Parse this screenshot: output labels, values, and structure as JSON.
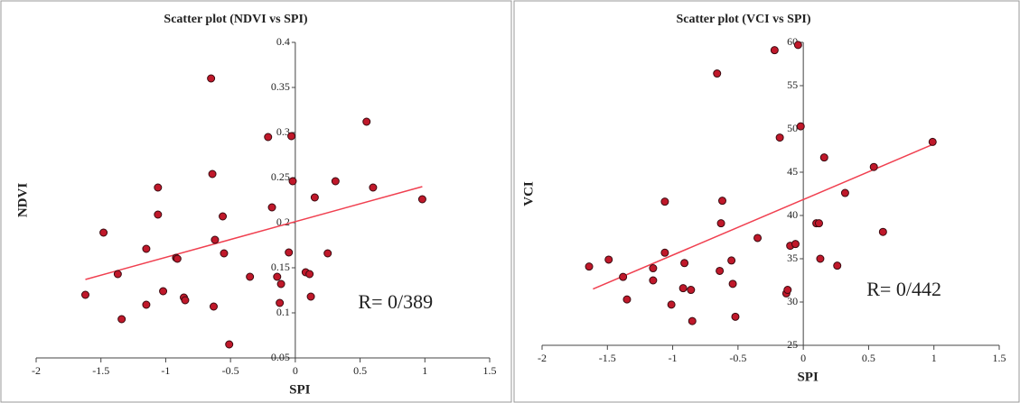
{
  "chart_data": [
    {
      "type": "scatter",
      "title": "Scatter plot (NDVI vs SPI)",
      "x_label": "SPI",
      "y_label": "NDVI",
      "annotation": "R= 0/389",
      "color": "#c0182a",
      "trend_color": "#f04050",
      "x": [
        -1.62,
        -1.48,
        -1.37,
        -1.34,
        -1.15,
        -1.15,
        -1.06,
        -1.06,
        -1.02,
        -0.92,
        -0.91,
        -0.86,
        -0.85,
        -0.65,
        -0.64,
        -0.63,
        -0.62,
        -0.56,
        -0.55,
        -0.51,
        -0.35,
        -0.21,
        -0.18,
        -0.14,
        -0.12,
        -0.11,
        -0.05,
        -0.03,
        -0.02,
        0.08,
        0.11,
        0.12,
        0.15,
        0.25,
        0.31,
        0.55,
        0.6,
        0.98
      ],
      "values": [
        0.12,
        0.189,
        0.143,
        0.093,
        0.171,
        0.109,
        0.239,
        0.209,
        0.124,
        0.161,
        0.16,
        0.117,
        0.114,
        0.36,
        0.254,
        0.107,
        0.181,
        0.207,
        0.166,
        0.065,
        0.14,
        0.295,
        0.217,
        0.14,
        0.111,
        0.132,
        0.167,
        0.296,
        0.246,
        0.145,
        0.143,
        0.118,
        0.228,
        0.166,
        0.246,
        0.312,
        0.239,
        0.226
      ],
      "trend": {
        "x": [
          -1.62,
          0.98
        ],
        "y": [
          0.137,
          0.24
        ]
      },
      "xlim": [
        -2,
        1.5
      ],
      "ylim": [
        0.05,
        0.4
      ],
      "xticks": [
        -2,
        -1.5,
        -1,
        -0.5,
        0,
        0.5,
        1,
        1.5
      ],
      "yticks": [
        0.05,
        0.1,
        0.15,
        0.2,
        0.25,
        0.3,
        0.35,
        0.4
      ]
    },
    {
      "type": "scatter",
      "title": "Scatter plot (VCI vs SPI)",
      "x_label": "SPI",
      "y_label": "VCI",
      "annotation": "R= 0/442",
      "color": "#c0182a",
      "trend_color": "#f04050",
      "x": [
        -1.64,
        -1.49,
        -1.38,
        -1.35,
        -1.15,
        -1.15,
        -1.06,
        -1.06,
        -1.01,
        -0.92,
        -0.91,
        -0.86,
        -0.85,
        -0.66,
        -0.64,
        -0.63,
        -0.62,
        -0.55,
        -0.54,
        -0.52,
        -0.35,
        -0.22,
        -0.18,
        -0.13,
        -0.12,
        -0.1,
        -0.06,
        -0.04,
        -0.02,
        0.1,
        0.12,
        0.13,
        0.16,
        0.26,
        0.32,
        0.54,
        0.61,
        0.99
      ],
      "values": [
        34.1,
        34.9,
        32.9,
        30.3,
        33.9,
        32.5,
        41.6,
        35.7,
        29.7,
        31.6,
        34.5,
        31.4,
        27.8,
        56.4,
        33.6,
        39.1,
        41.7,
        34.8,
        32.1,
        28.3,
        37.4,
        59.1,
        49.0,
        31.0,
        31.4,
        36.5,
        36.7,
        59.7,
        50.3,
        39.1,
        39.1,
        35.0,
        46.7,
        34.2,
        42.6,
        45.6,
        38.1,
        48.5
      ],
      "trend": {
        "x": [
          -1.61,
          0.99
        ],
        "y": [
          31.5,
          48.2
        ]
      },
      "xlim": [
        -2,
        1.5
      ],
      "ylim": [
        25,
        60
      ],
      "xticks": [
        -2,
        -1.5,
        -1,
        -0.5,
        0,
        0.5,
        1,
        1.5
      ],
      "yticks": [
        25,
        30,
        35,
        40,
        45,
        50,
        55,
        60
      ]
    }
  ]
}
